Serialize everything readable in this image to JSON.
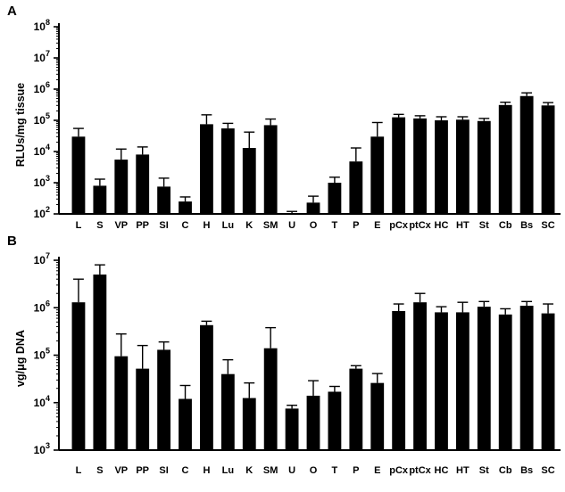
{
  "chart_data": [
    {
      "panel": "A",
      "type": "bar",
      "ylabel": "RLUs/mg tissue",
      "yscale": "log",
      "ylim": [
        100,
        100000000
      ],
      "ytick_base": "10",
      "ytick_exponents": [
        "2",
        "3",
        "4",
        "5",
        "6",
        "7",
        "8"
      ],
      "categories": [
        "L",
        "S",
        "VP",
        "PP",
        "SI",
        "C",
        "H",
        "Lu",
        "K",
        "SM",
        "U",
        "O",
        "T",
        "P",
        "E",
        "pCx",
        "ptCx",
        "HC",
        "HT",
        "St",
        "Cb",
        "Bs",
        "SC"
      ],
      "values": [
        30000,
        800,
        5500,
        8000,
        750,
        250,
        75000,
        55000,
        13000,
        70000,
        105,
        230,
        1000,
        4800,
        30000,
        125000,
        115000,
        100000,
        105000,
        95000,
        310000,
        600000,
        300000
      ],
      "error_upper": [
        55000,
        1300,
        12000,
        14000,
        1400,
        350,
        150000,
        80000,
        42000,
        110000,
        120,
        370,
        1500,
        13000,
        85000,
        155000,
        140000,
        130000,
        130000,
        115000,
        380000,
        760000,
        370000
      ],
      "bar_color": "#000000"
    },
    {
      "panel": "B",
      "type": "bar",
      "ylabel": "vg/μg DNA",
      "yscale": "log",
      "ylim": [
        1000,
        10000000
      ],
      "ytick_base": "10",
      "ytick_exponents": [
        "3",
        "4",
        "5",
        "6",
        "7"
      ],
      "categories": [
        "L",
        "S",
        "VP",
        "PP",
        "SI",
        "C",
        "H",
        "Lu",
        "K",
        "SM",
        "U",
        "O",
        "T",
        "P",
        "E",
        "pCx",
        "ptCx",
        "HC",
        "HT",
        "St",
        "Cb",
        "Bs",
        "SC"
      ],
      "values": [
        1300000,
        5000000,
        95000,
        52000,
        130000,
        12000,
        430000,
        40000,
        12500,
        140000,
        7500,
        14000,
        17000,
        52000,
        26000,
        850000,
        1300000,
        800000,
        800000,
        1050000,
        720000,
        1100000,
        760000
      ],
      "error_upper": [
        4000000,
        8000000,
        280000,
        160000,
        190000,
        23000,
        520000,
        80000,
        26000,
        380000,
        8800,
        29000,
        22000,
        60000,
        41000,
        1200000,
        2000000,
        1050000,
        1300000,
        1350000,
        950000,
        1350000,
        1200000
      ],
      "bar_color": "#000000"
    }
  ]
}
